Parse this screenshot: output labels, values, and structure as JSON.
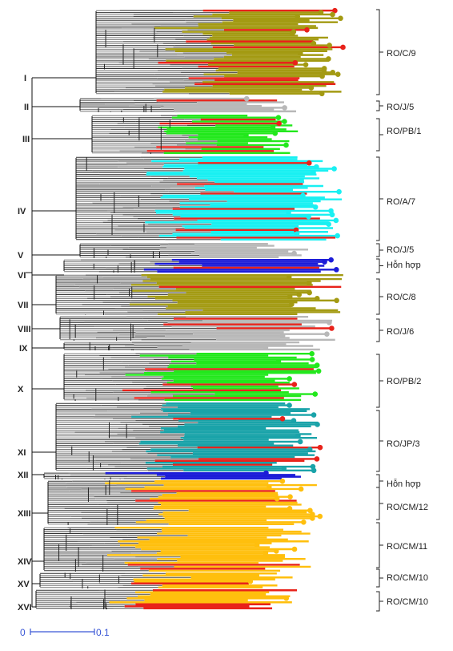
{
  "colors": {
    "olive": "#a39a12",
    "gray": "#b8b8b8",
    "lime": "#22e81c",
    "cyan": "#19f0f2",
    "blue": "#1c1cd8",
    "teal": "#1aa3a9",
    "orange": "#ffbf0d",
    "red": "#e8221a",
    "bracket": "#222222",
    "scale": "#3a57d6"
  },
  "clades": [
    {
      "numeral": "I",
      "label": "RO/C/9",
      "color": "olive"
    },
    {
      "numeral": "II",
      "label": "RO/J/5",
      "color": "gray"
    },
    {
      "numeral": "III",
      "label": "RO/PB/1",
      "color": "lime"
    },
    {
      "numeral": "IV",
      "label": "RO/A/7",
      "color": "cyan"
    },
    {
      "numeral": "V",
      "label": "RO/J/5",
      "color": "gray"
    },
    {
      "numeral": "VI",
      "label": "Hỗn hợp",
      "color": "blue"
    },
    {
      "numeral": "VII",
      "label": "RO/C/8",
      "color": "olive"
    },
    {
      "numeral": "VIII",
      "label": "RO/J/6",
      "color": "gray"
    },
    {
      "numeral": "IX",
      "label": "",
      "color": "gray"
    },
    {
      "numeral": "X",
      "label": "RO/PB/2",
      "color": "lime"
    },
    {
      "numeral": "XI",
      "label": "RO/JP/3",
      "color": "teal"
    },
    {
      "numeral": "XII",
      "label": "Hỗn hợp",
      "color": "blue"
    },
    {
      "numeral": "XIII",
      "label": "RO/CM/12",
      "color": "orange"
    },
    {
      "numeral": "XIV",
      "label": "RO/CM/11",
      "color": "orange"
    },
    {
      "numeral": "XV",
      "label": "RO/CM/10",
      "color": "orange"
    },
    {
      "numeral": "XVI",
      "label": "RO/CM/10",
      "color": "orange"
    }
  ],
  "scale_bar": {
    "start": "0",
    "end": "0.1"
  }
}
